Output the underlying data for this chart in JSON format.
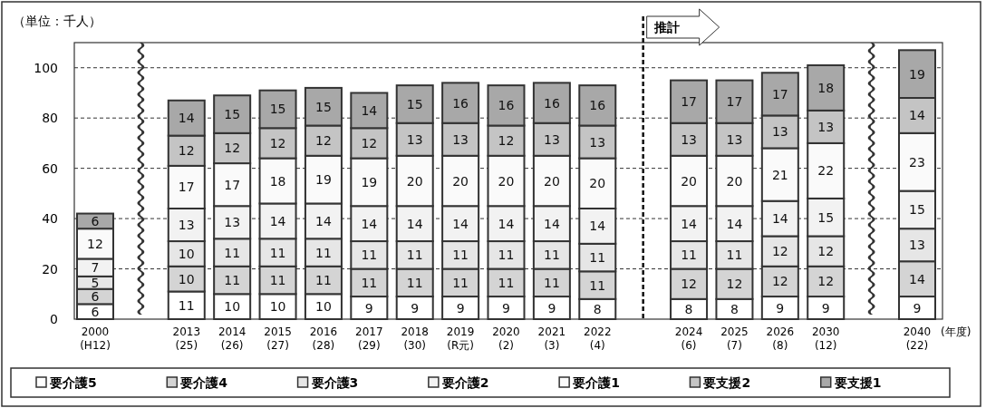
{
  "chart_data": {
    "type": "bar",
    "stacked": true,
    "ylabel": "（単位：千人）",
    "xlabel": "(年度)",
    "categories": [
      "2000\n(H12)",
      "2013\n(25)",
      "2014\n(26)",
      "2015\n(27)",
      "2016\n(28)",
      "2017\n(29)",
      "2018\n(30)",
      "2019\n(R元)",
      "2020\n(2)",
      "2021\n(3)",
      "2022\n(4)",
      "2024\n(6)",
      "2025\n(7)",
      "2026\n(8)",
      "2030\n(12)",
      "2040\n(22)"
    ],
    "series": [
      {
        "name": "要介護5",
        "color": "#ffffff",
        "values": [
          6,
          11,
          10,
          10,
          10,
          9,
          9,
          9,
          9,
          9,
          8,
          8,
          8,
          9,
          9,
          9
        ]
      },
      {
        "name": "要介護4",
        "color": "#d4d4d4",
        "values": [
          6,
          10,
          11,
          11,
          11,
          11,
          11,
          11,
          11,
          11,
          11,
          12,
          12,
          12,
          12,
          14
        ]
      },
      {
        "name": "要介護3",
        "color": "#e6e6e6",
        "values": [
          5,
          10,
          11,
          11,
          11,
          11,
          11,
          11,
          11,
          11,
          11,
          11,
          11,
          12,
          12,
          13
        ]
      },
      {
        "name": "要介護2",
        "color": "#f2f2f2",
        "values": [
          7,
          13,
          13,
          14,
          14,
          14,
          14,
          14,
          14,
          14,
          14,
          14,
          14,
          14,
          15,
          15
        ]
      },
      {
        "name": "要介護1",
        "color": "#fafafa",
        "values": [
          12,
          17,
          17,
          18,
          19,
          19,
          20,
          20,
          20,
          20,
          20,
          20,
          20,
          21,
          22,
          23
        ]
      },
      {
        "name": "要支援2",
        "color": "#c4c4c4",
        "values": [
          null,
          12,
          12,
          12,
          12,
          12,
          13,
          13,
          12,
          13,
          13,
          13,
          13,
          13,
          13,
          14
        ]
      },
      {
        "name": "要支援1",
        "color": "#a8a8a8",
        "values": [
          6,
          14,
          15,
          15,
          15,
          14,
          15,
          16,
          16,
          16,
          16,
          17,
          17,
          17,
          18,
          19
        ]
      }
    ],
    "ylim": [
      0,
      110
    ],
    "yticks": [
      0,
      20,
      40,
      60,
      80,
      100
    ],
    "grid": "y",
    "legend": "bottom",
    "data_labels": true,
    "annotations": [
      "推計"
    ]
  }
}
